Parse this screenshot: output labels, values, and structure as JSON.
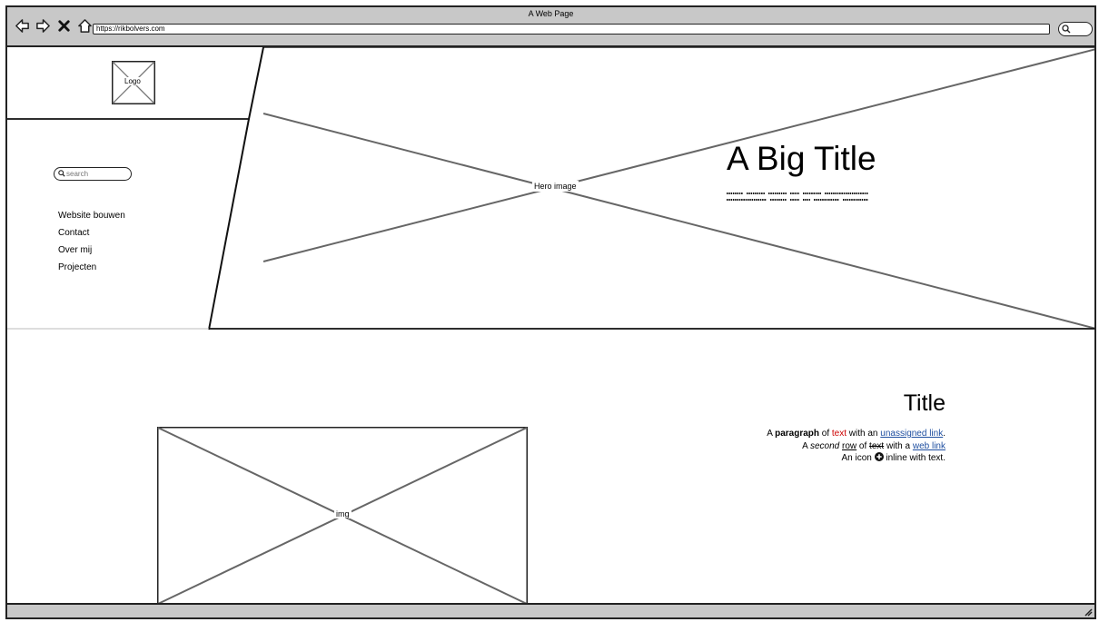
{
  "window": {
    "title": "A Web Page",
    "url": "https://rikbolvers.com"
  },
  "toolbar": {
    "icons": [
      "back-arrow-icon",
      "forward-arrow-icon",
      "close-icon",
      "home-icon",
      "search-icon"
    ]
  },
  "sidebar": {
    "logo_label": "Logo",
    "search_placeholder": "search",
    "nav_items": [
      {
        "label": "Website bouwen"
      },
      {
        "label": "Contact"
      },
      {
        "label": "Over mij"
      },
      {
        "label": "Projecten"
      }
    ]
  },
  "hero": {
    "image_label": "Hero image",
    "title": "A Big Title"
  },
  "section": {
    "image_label": "img",
    "title": "Title",
    "line1": {
      "pre": "A ",
      "bold": "paragraph",
      "mid": " of ",
      "red": "text",
      "mid2": " with an ",
      "link": "unassigned link",
      "end": "."
    },
    "line2": {
      "pre": "A ",
      "italic": "second",
      "mid": " ",
      "underlined": "row",
      "mid2": " of ",
      "strike": "text",
      "mid3": " with a ",
      "link": "web link"
    },
    "line3": {
      "pre": "An icon ",
      "post": " inline with text."
    }
  },
  "colors": {
    "chrome": "#c8c8c8",
    "link": "#1f4fa0",
    "red_text": "#cc0000"
  }
}
